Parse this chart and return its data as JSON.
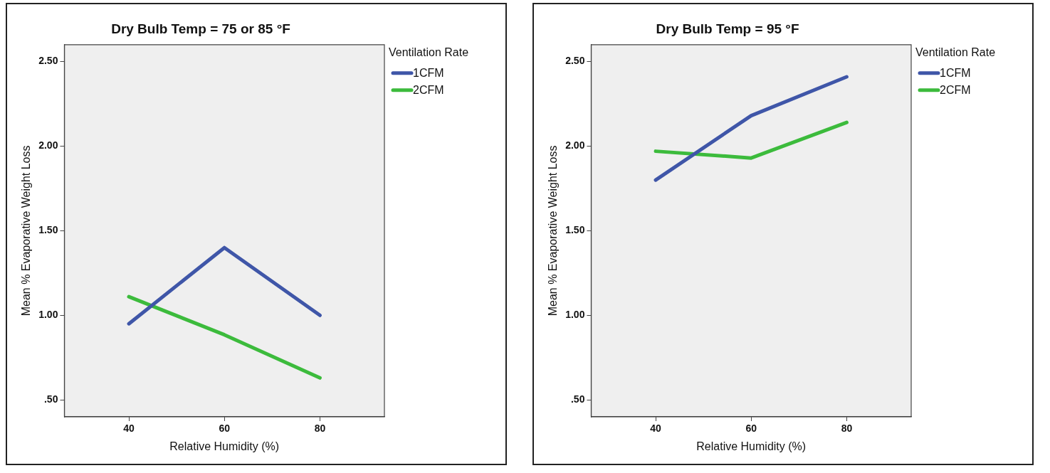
{
  "chart_data": [
    {
      "type": "line",
      "title": "Dry Bulb Temp = 75 or 85 °F",
      "xlabel": "Relative Humidity (%)",
      "ylabel": "Mean % Evaporative Weight Loss",
      "legend_title": "Ventilation Rate",
      "x": [
        40,
        60,
        80
      ],
      "series": [
        {
          "name": "1CFM",
          "color": "#3f56a8",
          "values": [
            0.95,
            1.4,
            1.0
          ]
        },
        {
          "name": "2CFM",
          "color": "#3cbb3c",
          "values": [
            1.11,
            0.885,
            0.63
          ]
        }
      ],
      "xlim": [
        26.5,
        93.5
      ],
      "xticks": [
        40,
        60,
        80
      ],
      "ylim": [
        0.4,
        2.6
      ],
      "yticks": [
        {
          "value": 0.5,
          "label": ".50"
        },
        {
          "value": 1.0,
          "label": "1.00"
        },
        {
          "value": 1.5,
          "label": "1.50"
        },
        {
          "value": 2.0,
          "label": "2.00"
        },
        {
          "value": 2.5,
          "label": "2.50"
        }
      ],
      "grid": false,
      "legend": "top right",
      "marker": "none",
      "line_style": "solid"
    },
    {
      "type": "line",
      "title": "Dry Bulb Temp = 95 °F",
      "xlabel": "Relative Humidity (%)",
      "ylabel": "Mean % Evaporative Weight Loss",
      "legend_title": "Ventilation Rate",
      "x": [
        40,
        60,
        80
      ],
      "series": [
        {
          "name": "1CFM",
          "color": "#3f56a8",
          "values": [
            1.8,
            2.18,
            2.41
          ]
        },
        {
          "name": "2CFM",
          "color": "#3cbb3c",
          "values": [
            1.97,
            1.93,
            2.14
          ]
        }
      ],
      "xlim": [
        26.5,
        93.5
      ],
      "xticks": [
        40,
        60,
        80
      ],
      "ylim": [
        0.4,
        2.6
      ],
      "yticks": [
        {
          "value": 0.5,
          "label": ".50"
        },
        {
          "value": 1.0,
          "label": "1.00"
        },
        {
          "value": 1.5,
          "label": "1.50"
        },
        {
          "value": 2.0,
          "label": "2.00"
        },
        {
          "value": 2.5,
          "label": "2.50"
        }
      ],
      "grid": false,
      "legend": "top right",
      "marker": "none",
      "line_style": "solid"
    }
  ]
}
